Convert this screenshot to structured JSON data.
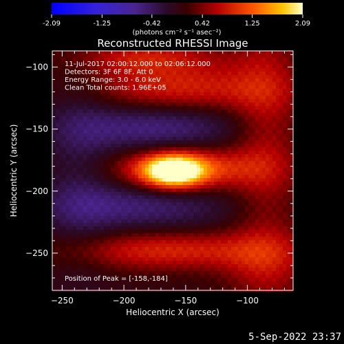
{
  "colorbar": {
    "ticks": [
      "-2.09",
      "-1.25",
      "-0.42",
      "0.42",
      "1.25",
      "2.09"
    ],
    "range": [
      -2.09,
      2.09
    ],
    "units_label": "(photons cm⁻² s⁻¹ asec⁻²)"
  },
  "footer": {
    "timestamp": "5-Sep-2022 23:37"
  },
  "chart_data": {
    "type": "heatmap",
    "title": "Reconstructed RHESSI Image",
    "xlabel": "Heliocentric X (arcsec)",
    "ylabel": "Heliocentric Y (arcsec)",
    "xlim": [
      -258,
      -63
    ],
    "ylim": [
      -280,
      -87
    ],
    "x_ticks": [
      -250,
      -200,
      -150,
      -100
    ],
    "y_ticks": [
      -100,
      -150,
      -200,
      -250
    ],
    "annotations": [
      "11-Jul-2017 02:00:12.000 to 02:06:12.000",
      "Detectors: 3F 6F 8F, Att 0",
      "Energy Range: 3.0 - 6.0 keV",
      "Clean    Total counts: 1.96E+05"
    ],
    "peak_label": "Position of Peak = [-158,-184]",
    "peak": [
      -158,
      -184
    ],
    "features": [
      {
        "kind": "source",
        "x": -160,
        "y": -184,
        "sx": 17,
        "sy": 9,
        "amp": 2.09
      },
      {
        "kind": "bright",
        "x": -150,
        "y": -182,
        "sx": 42,
        "sy": 12,
        "amp": 1.1
      },
      {
        "kind": "bright",
        "x": -155,
        "y": -118,
        "sx": 55,
        "sy": 14,
        "amp": 0.85
      },
      {
        "kind": "bright",
        "x": -185,
        "y": -92,
        "sx": 45,
        "sy": 10,
        "amp": 0.7
      },
      {
        "kind": "bright",
        "x": -165,
        "y": -248,
        "sx": 60,
        "sy": 11,
        "amp": 0.85
      },
      {
        "kind": "bright",
        "x": -85,
        "y": -150,
        "sx": 20,
        "sy": 80,
        "amp": 0.55
      },
      {
        "kind": "bright",
        "x": -85,
        "y": -260,
        "sx": 25,
        "sy": 20,
        "amp": 0.45
      },
      {
        "kind": "dark",
        "x": -175,
        "y": -148,
        "sx": 50,
        "sy": 15,
        "amp": -0.7
      },
      {
        "kind": "dark",
        "x": -190,
        "y": -212,
        "sx": 55,
        "sy": 14,
        "amp": -0.6
      },
      {
        "kind": "dark",
        "x": -235,
        "y": -180,
        "sx": 20,
        "sy": 70,
        "amp": -0.3
      }
    ]
  }
}
